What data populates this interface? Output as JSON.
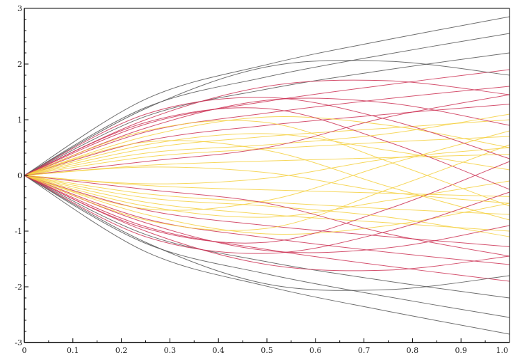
{
  "chart_data": {
    "type": "line",
    "title": "",
    "xlabel": "",
    "ylabel": "",
    "xlim": [
      0,
      1
    ],
    "ylim": [
      -3,
      3
    ],
    "x_ticks": [
      "0",
      "0.1",
      "0.2",
      "0.3",
      "0.4",
      "0.5",
      "0.6",
      "0.7",
      "0.8",
      "0.9",
      "1.0"
    ],
    "y_ticks": [
      "-3",
      "-2",
      "-1",
      "0",
      "1",
      "2",
      "3"
    ],
    "grid": false,
    "legend": "none",
    "colors": {
      "outer": "#555555",
      "middle": "#cc3355",
      "inner": "#f4d040",
      "axis": "#000000"
    },
    "series": [
      {
        "values_at_x": [
          0,
          0.25,
          0.5,
          0.75,
          1.0
        ],
        "y": [
          0,
          1.37,
          1.99,
          2.44,
          2.85
        ]
      },
      {
        "values_at_x": [
          0,
          0.25,
          0.5,
          0.75,
          1.0
        ],
        "y": [
          0,
          -1.37,
          -1.99,
          -2.44,
          -2.85
        ]
      },
      {
        "values_at_x": [
          0,
          0.25,
          0.5,
          0.75,
          1.0
        ],
        "y": [
          0,
          1.22,
          1.77,
          2.18,
          2.55
        ]
      },
      {
        "values_at_x": [
          0,
          0.25,
          0.5,
          0.75,
          1.0
        ],
        "y": [
          0,
          -1.22,
          -1.77,
          -2.18,
          -2.55
        ]
      },
      {
        "values_at_x": [
          0,
          0.25,
          0.5,
          0.75,
          1.0
        ],
        "y": [
          0,
          1.06,
          1.55,
          1.9,
          2.2
        ]
      },
      {
        "values_at_x": [
          0,
          0.25,
          0.5,
          0.75,
          1.0
        ],
        "y": [
          0,
          -1.06,
          -1.55,
          -1.9,
          -2.2
        ]
      },
      {
        "values_at_x": [
          0,
          0.25,
          0.5,
          0.75,
          1.0
        ],
        "y": [
          0,
          0.92,
          1.33,
          1.63,
          1.9
        ]
      },
      {
        "values_at_x": [
          0,
          0.25,
          0.5,
          0.75,
          1.0
        ],
        "y": [
          0,
          -0.92,
          -1.33,
          -1.63,
          -1.9
        ]
      },
      {
        "values_at_x": [
          0,
          0.25,
          0.5,
          0.75,
          1.0
        ],
        "y": [
          0,
          0.78,
          1.12,
          1.38,
          1.6
        ]
      },
      {
        "values_at_x": [
          0,
          0.25,
          0.5,
          0.75,
          1.0
        ],
        "y": [
          0,
          -0.78,
          -1.12,
          -1.38,
          -1.6
        ]
      },
      {
        "values_at_x": [
          0,
          0.25,
          0.5,
          0.75,
          1.0
        ],
        "y": [
          0,
          0.62,
          0.9,
          1.1,
          1.28
        ]
      },
      {
        "values_at_x": [
          0,
          0.25,
          0.5,
          0.75,
          1.0
        ],
        "y": [
          0,
          -0.62,
          -0.9,
          -1.1,
          -1.28
        ]
      },
      {
        "values_at_x": [
          0,
          0.25,
          0.5,
          0.75,
          1.0
        ],
        "y": [
          0,
          0.48,
          0.7,
          0.85,
          1.0
        ]
      },
      {
        "values_at_x": [
          0,
          0.25,
          0.5,
          0.75,
          1.0
        ],
        "y": [
          0,
          -0.48,
          -0.7,
          -0.85,
          -1.0
        ]
      },
      {
        "values_at_x": [
          0,
          0.25,
          0.5,
          0.75,
          1.0
        ],
        "y": [
          0,
          0.33,
          0.48,
          0.6,
          0.7
        ]
      },
      {
        "values_at_x": [
          0,
          0.25,
          0.5,
          0.75,
          1.0
        ],
        "y": [
          0,
          -0.33,
          -0.48,
          -0.6,
          -0.7
        ]
      },
      {
        "values_at_x": [
          0,
          0.25,
          0.5,
          0.75,
          1.0
        ],
        "y": [
          0,
          0.18,
          0.26,
          0.32,
          0.38
        ]
      },
      {
        "values_at_x": [
          0,
          0.25,
          0.5,
          0.75,
          1.0
        ],
        "y": [
          0,
          -0.18,
          -0.26,
          -0.32,
          -0.38
        ]
      },
      {
        "values_at_x": [
          0,
          0.25,
          0.5,
          0.75,
          1.0
        ],
        "y": [
          0,
          1.2,
          1.95,
          2.05,
          1.8
        ]
      },
      {
        "values_at_x": [
          0,
          0.25,
          0.5,
          0.75,
          1.0
        ],
        "y": [
          0,
          -1.2,
          -1.95,
          -2.05,
          -1.8
        ]
      },
      {
        "values_at_x": [
          0,
          0.25,
          0.5,
          0.75,
          1.0
        ],
        "y": [
          0,
          1.0,
          1.6,
          1.7,
          1.45
        ]
      },
      {
        "values_at_x": [
          0,
          0.25,
          0.5,
          0.75,
          1.0
        ],
        "y": [
          0,
          -1.0,
          -1.6,
          -1.7,
          -1.45
        ]
      },
      {
        "values_at_x": [
          0,
          0.25,
          0.5,
          0.75,
          1.0
        ],
        "y": [
          0,
          0.85,
          1.35,
          1.3,
          0.9
        ]
      },
      {
        "values_at_x": [
          0,
          0.25,
          0.5,
          0.75,
          1.0
        ],
        "y": [
          0,
          -0.85,
          -1.35,
          -1.3,
          -0.9
        ]
      },
      {
        "values_at_x": [
          0,
          0.25,
          0.5,
          0.75,
          1.0
        ],
        "y": [
          0,
          0.7,
          1.05,
          0.9,
          0.5
        ]
      },
      {
        "values_at_x": [
          0,
          0.25,
          0.5,
          0.75,
          1.0
        ],
        "y": [
          0,
          -0.7,
          -1.05,
          -0.9,
          -0.5
        ]
      },
      {
        "values_at_x": [
          0,
          0.25,
          0.5,
          0.75,
          1.0
        ],
        "y": [
          0,
          0.55,
          0.75,
          0.45,
          0.1
        ]
      },
      {
        "values_at_x": [
          0,
          0.25,
          0.5,
          0.75,
          1.0
        ],
        "y": [
          0,
          -0.55,
          -0.75,
          -0.45,
          -0.1
        ]
      },
      {
        "values_at_x": [
          0,
          0.25,
          0.5,
          0.75,
          1.0
        ],
        "y": [
          0,
          0.95,
          1.2,
          0.6,
          -0.25
        ]
      },
      {
        "values_at_x": [
          0,
          0.25,
          0.5,
          0.75,
          1.0
        ],
        "y": [
          0,
          -0.95,
          -1.2,
          -0.6,
          0.25
        ]
      },
      {
        "values_at_x": [
          0,
          0.25,
          0.5,
          0.75,
          1.0
        ],
        "y": [
          0,
          0.6,
          0.45,
          -0.2,
          -0.8
        ]
      },
      {
        "values_at_x": [
          0,
          0.25,
          0.5,
          0.75,
          1.0
        ],
        "y": [
          0,
          -0.6,
          -0.45,
          0.2,
          0.8
        ]
      },
      {
        "values_at_x": [
          0,
          0.25,
          0.5,
          0.75,
          1.0
        ],
        "y": [
          0,
          0.8,
          0.95,
          0.25,
          -0.55
        ]
      },
      {
        "values_at_x": [
          0,
          0.25,
          0.5,
          0.75,
          1.0
        ],
        "y": [
          0,
          -0.8,
          -0.95,
          -0.25,
          0.55
        ]
      },
      {
        "values_at_x": [
          0,
          0.25,
          0.5,
          0.75,
          1.0
        ],
        "y": [
          0,
          0.4,
          0.55,
          0.75,
          1.1
        ]
      },
      {
        "values_at_x": [
          0,
          0.25,
          0.5,
          0.75,
          1.0
        ],
        "y": [
          0,
          -0.4,
          -0.55,
          -0.75,
          -1.1
        ]
      },
      {
        "values_at_x": [
          0,
          0.25,
          0.5,
          0.75,
          1.0
        ],
        "y": [
          0,
          0.25,
          0.5,
          1.05,
          1.45
        ]
      },
      {
        "values_at_x": [
          0,
          0.25,
          0.5,
          0.75,
          1.0
        ],
        "y": [
          0,
          -0.25,
          -0.5,
          -1.05,
          -1.45
        ]
      },
      {
        "values_at_x": [
          0,
          0.25,
          0.5,
          0.75,
          1.0
        ],
        "y": [
          0,
          1.1,
          1.4,
          1.0,
          0.3
        ]
      },
      {
        "values_at_x": [
          0,
          0.25,
          0.5,
          0.75,
          1.0
        ],
        "y": [
          0,
          -1.1,
          -1.4,
          -1.0,
          -0.3
        ]
      },
      {
        "values_at_x": [
          0,
          0.25,
          0.5,
          0.75,
          1.0
        ],
        "y": [
          0,
          0.15,
          0.05,
          -0.3,
          -0.5
        ]
      },
      {
        "values_at_x": [
          0,
          0.25,
          0.5,
          0.75,
          1.0
        ],
        "y": [
          0,
          -0.15,
          -0.05,
          0.3,
          0.5
        ]
      }
    ]
  }
}
